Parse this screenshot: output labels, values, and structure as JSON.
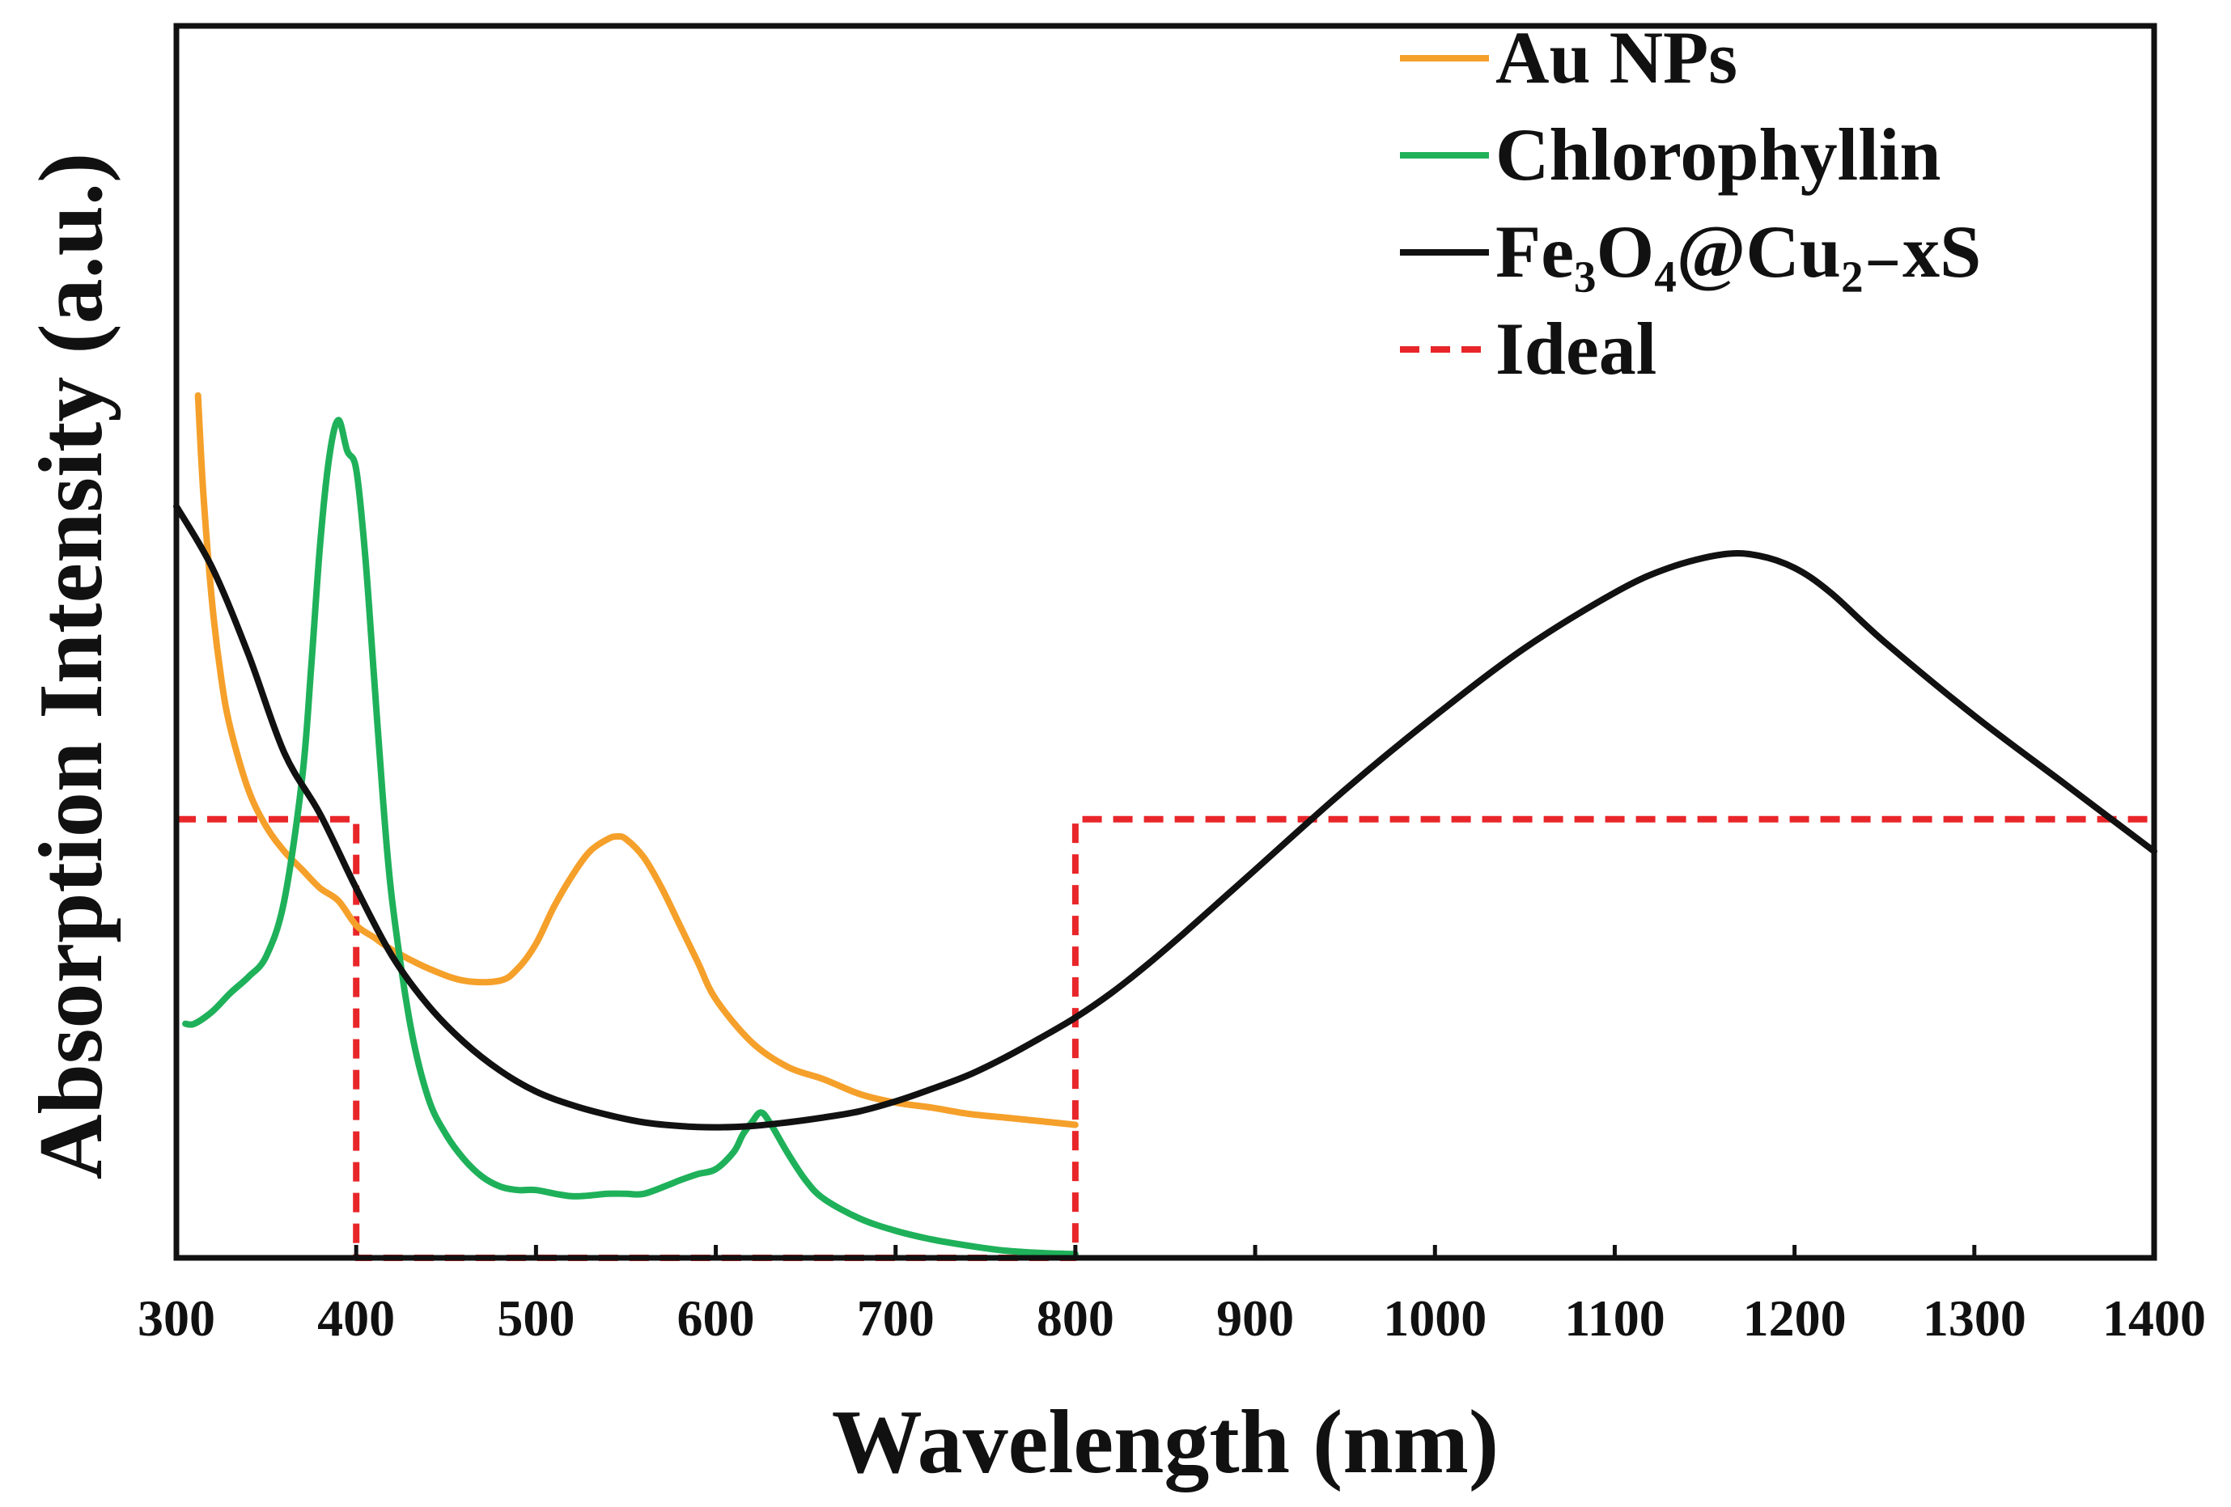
{
  "chart_data": {
    "type": "line",
    "title": "",
    "xlabel": "Wavelength (nm)",
    "ylabel": "Absorption Intensity (a.u.)",
    "xlim": [
      300,
      1400
    ],
    "ylim": [
      0,
      1
    ],
    "x_ticks": [
      "300",
      "400",
      "500",
      "600",
      "700",
      "800",
      "900",
      "1000",
      "1100",
      "1200",
      "1300",
      "1400"
    ],
    "y_ticks": [],
    "grid": false,
    "legend_position": "top-right",
    "series": [
      {
        "name": "Au NPs",
        "color": "#f5a02a",
        "dash": "solid",
        "x": [
          312,
          315,
          320,
          325,
          330,
          340,
          350,
          360,
          370,
          380,
          390,
          400,
          410,
          420,
          440,
          460,
          480,
          490,
          500,
          510,
          520,
          530,
          540,
          545,
          550,
          560,
          570,
          580,
          590,
          600,
          620,
          640,
          660,
          680,
          700,
          720,
          740,
          760,
          780,
          800
        ],
        "y": [
          0.7,
          0.62,
          0.53,
          0.47,
          0.43,
          0.38,
          0.35,
          0.33,
          0.315,
          0.3,
          0.29,
          0.27,
          0.26,
          0.25,
          0.235,
          0.225,
          0.225,
          0.235,
          0.255,
          0.285,
          0.31,
          0.33,
          0.34,
          0.342,
          0.34,
          0.325,
          0.3,
          0.27,
          0.24,
          0.21,
          0.175,
          0.155,
          0.145,
          0.133,
          0.126,
          0.122,
          0.117,
          0.114,
          0.111,
          0.108
        ]
      },
      {
        "name": "Chlorophyllin",
        "color": "#1fb15a",
        "dash": "solid",
        "x": [
          305,
          310,
          320,
          330,
          340,
          350,
          360,
          370,
          375,
          380,
          385,
          390,
          395,
          400,
          405,
          410,
          415,
          420,
          430,
          440,
          450,
          460,
          470,
          480,
          490,
          500,
          520,
          540,
          550,
          560,
          575,
          580,
          590,
          600,
          610,
          615,
          620,
          625,
          630,
          640,
          650,
          660,
          680,
          700,
          720,
          740,
          760,
          780,
          800
        ],
        "y": [
          0.19,
          0.19,
          0.2,
          0.215,
          0.228,
          0.245,
          0.29,
          0.39,
          0.48,
          0.58,
          0.65,
          0.68,
          0.655,
          0.64,
          0.57,
          0.47,
          0.37,
          0.29,
          0.19,
          0.13,
          0.1,
          0.08,
          0.066,
          0.058,
          0.055,
          0.055,
          0.05,
          0.052,
          0.052,
          0.052,
          0.06,
          0.063,
          0.068,
          0.072,
          0.086,
          0.1,
          0.11,
          0.118,
          0.11,
          0.085,
          0.063,
          0.048,
          0.032,
          0.022,
          0.015,
          0.01,
          0.006,
          0.004,
          0.003
        ]
      },
      {
        "name": "Fe₃O₄@Cu₂₋xS",
        "color": "#111111",
        "dash": "solid",
        "x": [
          300,
          320,
          340,
          360,
          380,
          400,
          420,
          440,
          460,
          480,
          500,
          520,
          540,
          560,
          580,
          600,
          620,
          640,
          660,
          680,
          700,
          720,
          740,
          760,
          780,
          800,
          820,
          840,
          860,
          880,
          900,
          950,
          1000,
          1050,
          1100,
          1130,
          1160,
          1180,
          1200,
          1220,
          1250,
          1300,
          1350,
          1400
        ],
        "y": [
          0.61,
          0.56,
          0.49,
          0.41,
          0.36,
          0.3,
          0.245,
          0.205,
          0.175,
          0.152,
          0.135,
          0.124,
          0.116,
          0.11,
          0.107,
          0.106,
          0.107,
          0.11,
          0.114,
          0.119,
          0.127,
          0.137,
          0.148,
          0.162,
          0.178,
          0.195,
          0.215,
          0.238,
          0.263,
          0.289,
          0.315,
          0.38,
          0.44,
          0.495,
          0.54,
          0.56,
          0.571,
          0.57,
          0.56,
          0.54,
          0.5,
          0.44,
          0.385,
          0.33
        ]
      },
      {
        "name": "Ideal",
        "color": "#e8262a",
        "dash": "dashed",
        "x": [
          300,
          400,
          400,
          800,
          800,
          1400
        ],
        "y": [
          0.356,
          0.356,
          0.0,
          0.0,
          0.356,
          0.356
        ]
      }
    ]
  }
}
